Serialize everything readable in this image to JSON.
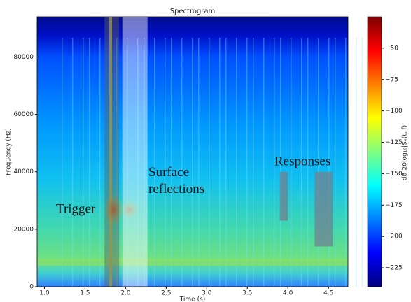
{
  "chart_data": {
    "type": "spectrogram",
    "title": "Spectrogram",
    "x_label": "Time (s)",
    "y_label": "Frequency (Hz)",
    "xlim": [
      0.91,
      4.74
    ],
    "ylim": [
      0,
      94000
    ],
    "xticks": [
      {
        "value": 1,
        "label": "1.0"
      },
      1.5,
      {
        "value": 2,
        "label": "2.0"
      },
      2.5,
      {
        "value": 3,
        "label": "3.0"
      },
      3.5,
      {
        "value": 4,
        "label": "4.0"
      },
      4.5
    ],
    "yticks": [
      0,
      20000,
      40000,
      60000,
      80000
    ],
    "colorbar": {
      "label": "dB 20log₁₀|Sₓ(t, f)|",
      "colormap": "jet",
      "clim": [
        -240,
        -25
      ],
      "ticks": [
        {
          "value": -50,
          "label": "−50"
        },
        {
          "value": -75,
          "label": "−75"
        },
        {
          "value": -100,
          "label": "−100"
        },
        {
          "value": -125,
          "label": "−125"
        },
        {
          "value": -150,
          "label": "−150"
        },
        {
          "value": -175,
          "label": "−175"
        },
        {
          "value": -200,
          "label": "−200"
        },
        {
          "value": -225,
          "label": "−225"
        }
      ]
    },
    "annotations": [
      {
        "text": "Trigger",
        "x": [
          1.74,
          1.92
        ],
        "color": "#606060"
      },
      {
        "text": "Surface reflections",
        "x": [
          1.96,
          2.27
        ],
        "color": "#ffffff"
      },
      {
        "text": "Responses",
        "x": [
          3.9,
          4.0
        ],
        "y": [
          23000,
          40000
        ],
        "color": "#708090"
      },
      {
        "x": [
          4.33,
          4.55
        ],
        "y": [
          14000,
          40000
        ],
        "color": "#708090"
      }
    ]
  }
}
